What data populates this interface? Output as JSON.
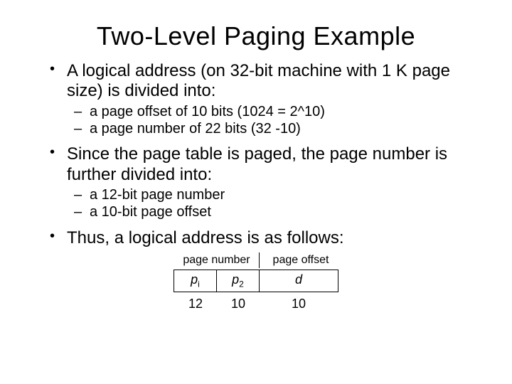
{
  "title": "Two-Level Paging Example",
  "bullets": {
    "b1": "A logical address (on 32-bit machine with 1 K page size) is divided into:",
    "b1_sub": {
      "s1": "a page offset of 10 bits (1024 = 2^10)",
      "s2": "a page number of 22 bits (32 -10)"
    },
    "b2": "Since the page table is paged, the page number is further divided into:",
    "b2_sub": {
      "s1": "a 12-bit page number",
      "s2": "a 10-bit page offset"
    },
    "b3": "Thus, a logical address is as follows:"
  },
  "diagram": {
    "header_page_number": "page number",
    "header_page_offset": "page offset",
    "cells": {
      "p1": "p",
      "p1_sub": "i",
      "p2": "p",
      "p2_sub": "2",
      "d": "d"
    },
    "bits": {
      "b1": "12",
      "b2": "10",
      "b3": "10"
    },
    "colors": {
      "border": "#000000",
      "text": "#000000",
      "background": "#ffffff"
    }
  }
}
